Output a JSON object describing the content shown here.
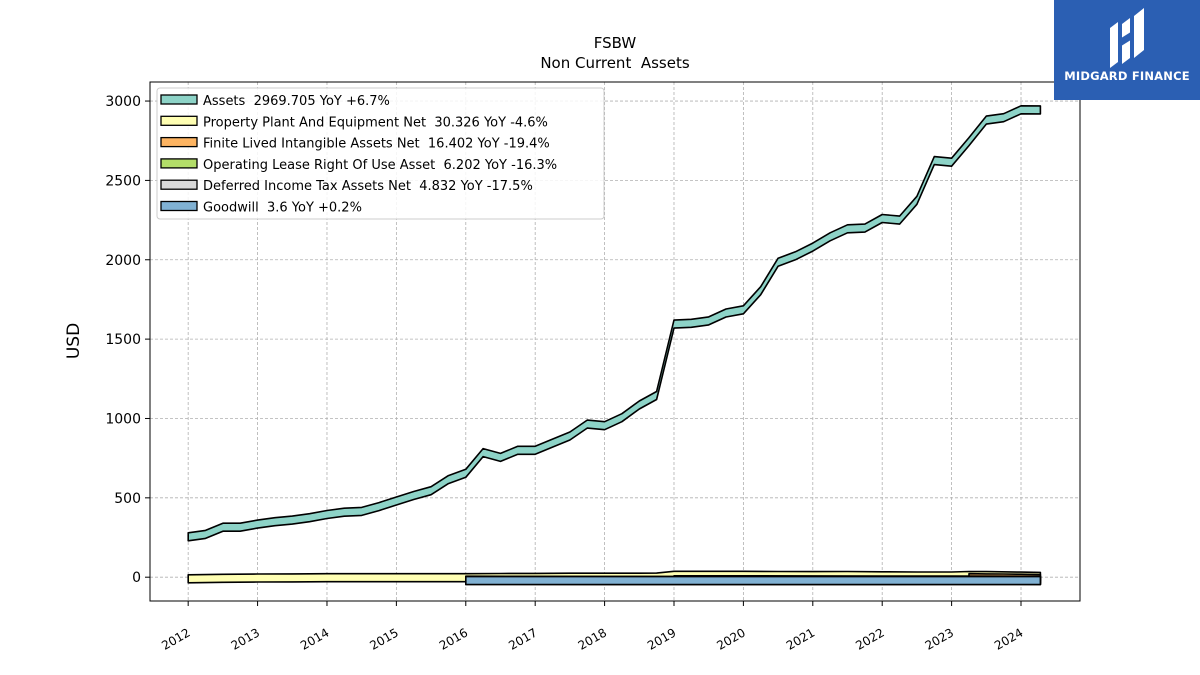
{
  "chart_data": {
    "type": "area",
    "title": "FSBW",
    "subtitle": "Non Current  Assets",
    "ylabel": "USD",
    "xlabel": "",
    "xlim": [
      2011.45,
      2024.85
    ],
    "ylim": [
      -150,
      3120
    ],
    "yticks": [
      0,
      500,
      1000,
      1500,
      2000,
      2500,
      3000
    ],
    "xticks": [
      2012,
      2013,
      2014,
      2015,
      2016,
      2017,
      2018,
      2019,
      2020,
      2021,
      2022,
      2023,
      2024
    ],
    "grid": true,
    "legend_position": "top-left",
    "series": [
      {
        "name": "Assets",
        "legend": "Assets  2969.705 YoY +6.7%",
        "color": "#8dd3c7",
        "x": [
          2012.0,
          2012.25,
          2012.5,
          2012.75,
          2013.0,
          2013.25,
          2013.5,
          2013.75,
          2014.0,
          2014.25,
          2014.5,
          2014.75,
          2015.0,
          2015.25,
          2015.5,
          2015.75,
          2016.0,
          2016.25,
          2016.5,
          2016.75,
          2017.0,
          2017.25,
          2017.5,
          2017.75,
          2018.0,
          2018.25,
          2018.5,
          2018.75,
          2019.0,
          2019.25,
          2019.5,
          2019.75,
          2020.0,
          2020.25,
          2020.5,
          2020.75,
          2021.0,
          2021.25,
          2021.5,
          2021.75,
          2022.0,
          2022.25,
          2022.5,
          2022.75,
          2023.0,
          2023.25,
          2023.5,
          2023.75,
          2024.0,
          2024.25
        ],
        "values": [
          280,
          295,
          340,
          340,
          360,
          375,
          385,
          400,
          420,
          435,
          440,
          470,
          505,
          540,
          570,
          640,
          680,
          810,
          780,
          825,
          825,
          870,
          915,
          990,
          980,
          1030,
          1110,
          1170,
          1620,
          1625,
          1640,
          1690,
          1710,
          1830,
          2010,
          2050,
          2105,
          2170,
          2220,
          2225,
          2285,
          2275,
          2400,
          2650,
          2640,
          2770,
          2905,
          2920,
          2970,
          2969.705
        ]
      },
      {
        "name": "Property Plant And Equipment Net",
        "legend": "Property Plant And Equipment Net  30.326 YoY -4.6%",
        "color": "#ffffb3",
        "x": [
          2012.0,
          2012.5,
          2013.0,
          2013.5,
          2014.0,
          2014.5,
          2015.0,
          2015.5,
          2016.0,
          2016.5,
          2017.0,
          2017.5,
          2018.0,
          2018.5,
          2018.75,
          2019.0,
          2019.5,
          2020.0,
          2020.5,
          2021.0,
          2021.5,
          2022.0,
          2022.5,
          2023.0,
          2023.25,
          2023.5,
          2024.0,
          2024.25
        ],
        "values": [
          15,
          18,
          20,
          21,
          22,
          22,
          22,
          22,
          22,
          23,
          24,
          25,
          25,
          25,
          26,
          37,
          37,
          37,
          36,
          35,
          36,
          34,
          33,
          33,
          36,
          35,
          32,
          30.326
        ]
      },
      {
        "name": "Finite Lived Intangible Assets Net",
        "legend": "Finite Lived Intangible Assets Net  16.402 YoY -19.4%",
        "color": "#fdb462",
        "x": [
          2023.25,
          2023.5,
          2023.75,
          2024.0,
          2024.25
        ],
        "values": [
          22,
          21,
          20,
          19,
          16.402
        ]
      },
      {
        "name": "Operating Lease Right Of Use Asset",
        "legend": "Operating Lease Right Of Use Asset  6.202 YoY -16.3%",
        "color": "#b3de69",
        "x": [
          2019.0,
          2020.0,
          2021.0,
          2022.0,
          2023.0,
          2024.0,
          2024.25
        ],
        "values": [
          9,
          8.5,
          8,
          7.5,
          7.4,
          6.5,
          6.202
        ]
      },
      {
        "name": "Deferred Income Tax Assets Net",
        "legend": "Deferred Income Tax Assets Net  4.832 YoY -17.5%",
        "color": "#d9d9d9",
        "x": [
          2016.0,
          2018.0,
          2020.0,
          2022.0,
          2023.0,
          2024.25
        ],
        "values": [
          6,
          5,
          4.5,
          5,
          5.8,
          4.832
        ]
      },
      {
        "name": "Goodwill",
        "legend": "Goodwill  3.6 YoY +0.2%",
        "color": "#80b1d3",
        "x": [
          2016.0,
          2024.25
        ],
        "values": [
          3.6,
          3.6
        ]
      }
    ]
  },
  "logo": {
    "text": "MIDGARD FINANCE"
  }
}
